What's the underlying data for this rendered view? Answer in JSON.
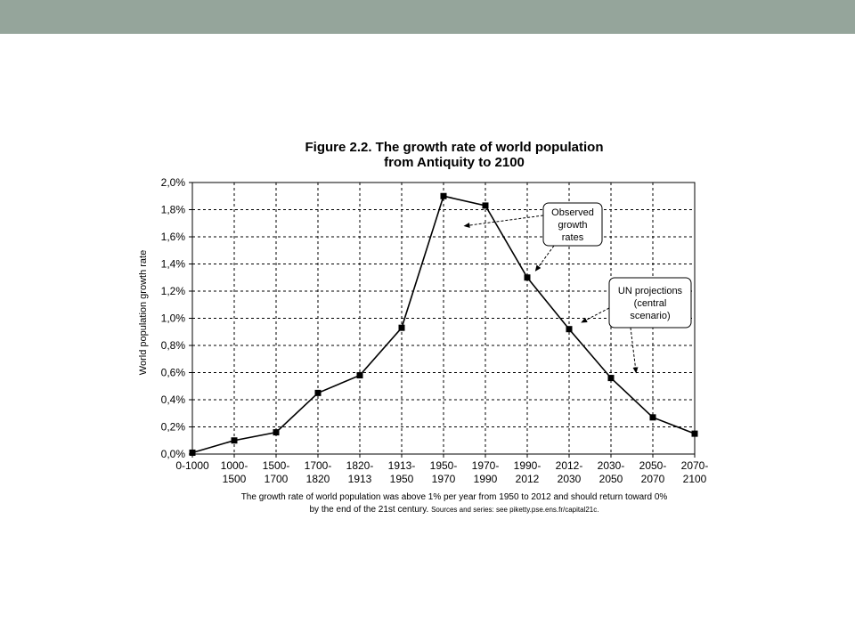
{
  "colors": {
    "top_bar": "#95a59b",
    "background": "#ffffff",
    "series_line": "#000000",
    "grid": "#000000"
  },
  "chart_data": {
    "type": "line",
    "title": [
      "Figure 2.2. The growth rate of world population",
      "from Antiquity to 2100"
    ],
    "xlabel": "",
    "ylabel": "World population growth rate",
    "categories": [
      [
        "0-1000"
      ],
      [
        "1000-",
        "1500"
      ],
      [
        "1500-",
        "1700"
      ],
      [
        "1700-",
        "1820"
      ],
      [
        "1820-",
        "1913"
      ],
      [
        "1913-",
        "1950"
      ],
      [
        "1950-",
        "1970"
      ],
      [
        "1970-",
        "1990"
      ],
      [
        "1990-",
        "2012"
      ],
      [
        "2012-",
        "2030"
      ],
      [
        "2030-",
        "2050"
      ],
      [
        "2050-",
        "2070"
      ],
      [
        "2070-",
        "2100"
      ]
    ],
    "series": [
      {
        "values": [
          0.01,
          0.1,
          0.16,
          0.45,
          0.58,
          0.93,
          1.9,
          1.83,
          1.3,
          0.92,
          0.56,
          0.27,
          0.15
        ]
      }
    ],
    "ylim": [
      0,
      2.0
    ],
    "y_ticks": [
      {
        "value": 0.0,
        "label": "0,0%"
      },
      {
        "value": 0.2,
        "label": "0,2%"
      },
      {
        "value": 0.4,
        "label": "0,4%"
      },
      {
        "value": 0.6,
        "label": "0,6%"
      },
      {
        "value": 0.8,
        "label": "0,8%"
      },
      {
        "value": 1.0,
        "label": "1,0%"
      },
      {
        "value": 1.2,
        "label": "1,2%"
      },
      {
        "value": 1.4,
        "label": "1,4%"
      },
      {
        "value": 1.6,
        "label": "1,6%"
      },
      {
        "value": 1.8,
        "label": "1,8%"
      },
      {
        "value": 2.0,
        "label": "2,0%"
      }
    ],
    "grid": true,
    "grid_style": "dashed",
    "marker": "square",
    "annotations": [
      {
        "text": [
          "Observed",
          "growth",
          "rates"
        ],
        "arrow_targets": [
          [
            6.5,
            1.68
          ],
          [
            8.2,
            1.35
          ]
        ]
      },
      {
        "text": [
          "UN projections",
          "(central",
          "scenario)"
        ],
        "arrow_targets": [
          [
            9.3,
            0.97
          ],
          [
            10.6,
            0.6
          ]
        ]
      }
    ]
  },
  "note": {
    "line1": "The growth rate of world population was above 1% per year from 1950 to 2012 and should return toward 0%",
    "line2_main": "by the end of the 21st century. ",
    "line2_small": "Sources and series: see piketty.pse.ens.fr/capital21c."
  }
}
